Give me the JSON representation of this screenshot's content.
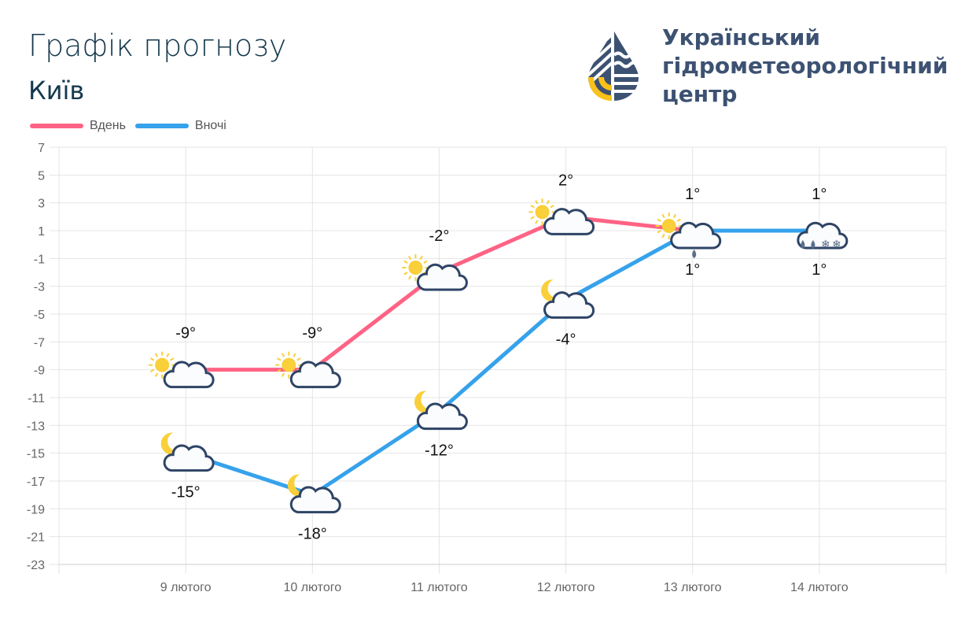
{
  "header": {
    "title": "Графік прогнозу",
    "city": "Київ"
  },
  "logo": {
    "text_lines": [
      "Український",
      "гідрометеорологічний",
      "центр"
    ]
  },
  "colors": {
    "day": "#ff6384",
    "night": "#36a2eb",
    "text": "#15394d",
    "grid": "#e4e4e4",
    "cloud": "#2e4466",
    "sun": "#f9cf3a"
  },
  "chart_data": {
    "type": "line",
    "categories": [
      "9 лютого",
      "10 лютого",
      "11 лютого",
      "12 лютого",
      "13 лютого",
      "14 лютого"
    ],
    "series": [
      {
        "name": "Вдень",
        "values": [
          -9,
          -9,
          -2,
          2,
          1,
          1
        ],
        "labels": [
          "-9°",
          "-9°",
          "-2°",
          "2°",
          "1°",
          "1°"
        ],
        "icons": [
          "sun-cloud",
          "sun-cloud",
          "sun-cloud",
          "sun-cloud",
          "sun-cloud-rain",
          "cloud-rain-snow"
        ]
      },
      {
        "name": "Вночі",
        "values": [
          -15,
          -18,
          -12,
          -4,
          1,
          1
        ],
        "labels": [
          "-15°",
          "-18°",
          "-12°",
          "-4°",
          "1°",
          "1°"
        ],
        "icons": [
          "moon-cloud",
          "moon-cloud",
          "moon-cloud",
          "moon-cloud",
          "",
          ""
        ]
      }
    ],
    "ylim": [
      -23,
      7
    ],
    "yticks": [
      7,
      5,
      3,
      1,
      -1,
      -3,
      -5,
      -7,
      -9,
      -11,
      -13,
      -15,
      -17,
      -19,
      -21,
      -23
    ],
    "grid": true,
    "legend": "top-left"
  }
}
